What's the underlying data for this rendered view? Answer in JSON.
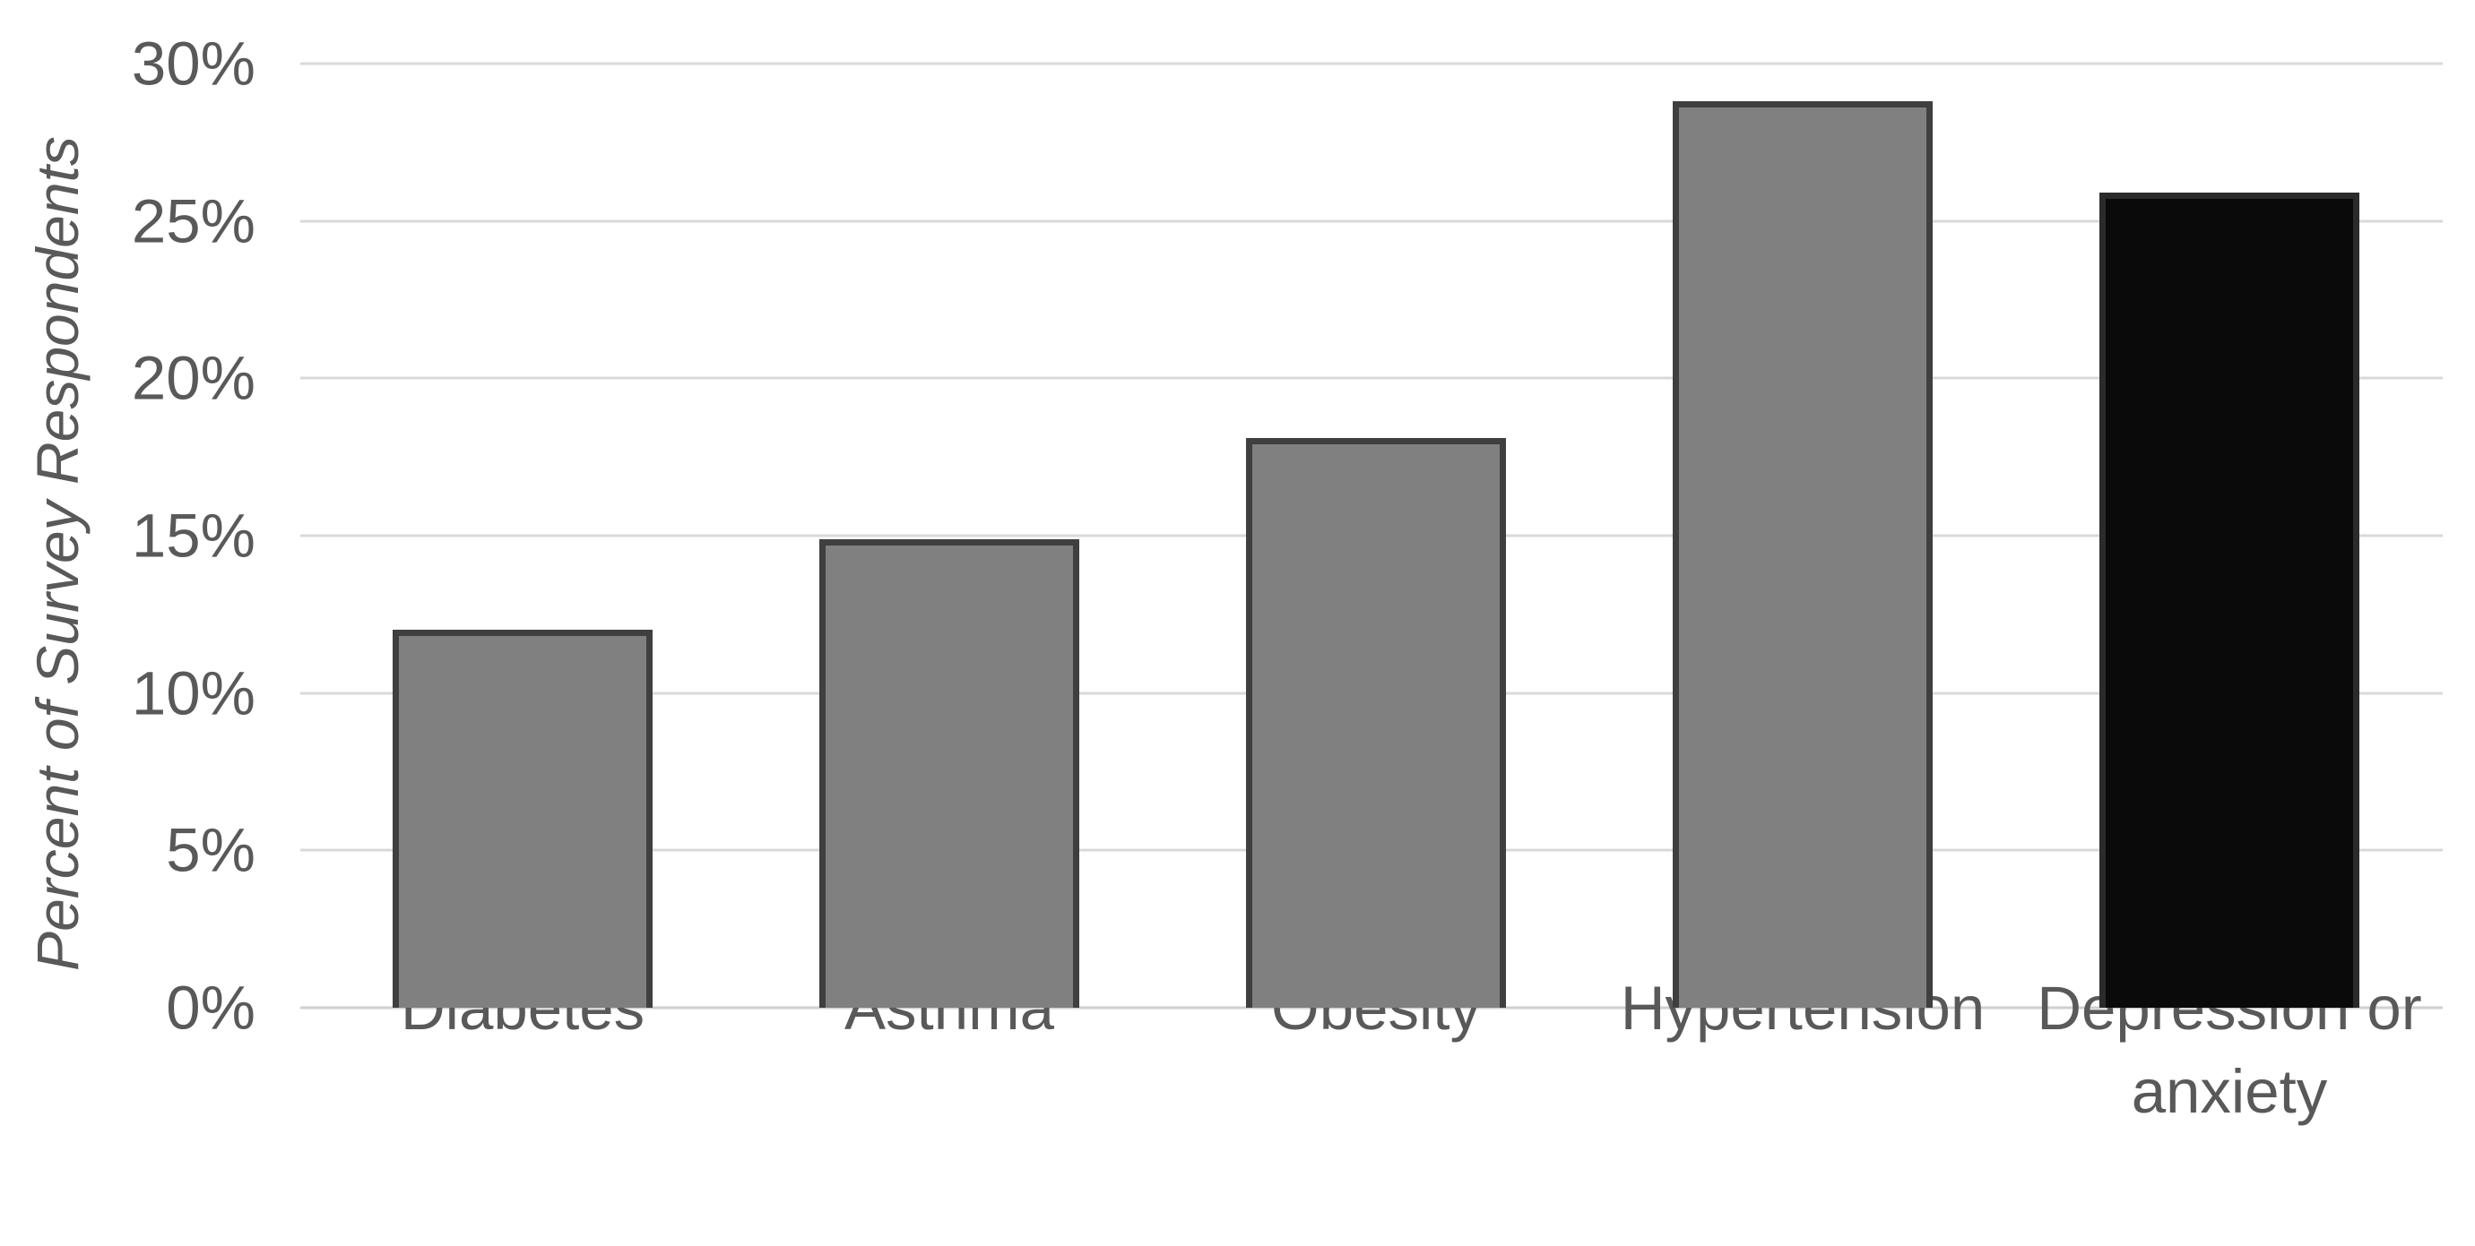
{
  "chart_data": {
    "type": "bar",
    "categories": [
      "Diabetes",
      "Asthma",
      "Obesity",
      "Hypertension",
      "Depression or anxiety"
    ],
    "values": [
      12.0,
      14.9,
      18.1,
      28.8,
      25.9
    ],
    "title": "",
    "xlabel": "",
    "ylabel": "Percent of Survey Respondents",
    "ylim": [
      0,
      30
    ],
    "ytick_step": 5,
    "ytick_labels": [
      "0%",
      "5%",
      "10%",
      "15%",
      "20%",
      "25%",
      "30%"
    ],
    "grid": true,
    "legend_position": "none",
    "bar_colors": [
      "#808080",
      "#808080",
      "#808080",
      "#808080",
      "#0a0a0a"
    ],
    "bar_border_colors": [
      "#3f3f3f",
      "#3f3f3f",
      "#3f3f3f",
      "#3f3f3f",
      "#2b2b2b"
    ],
    "gridline_color": "#d9d9d9",
    "text_color": "#595959"
  }
}
